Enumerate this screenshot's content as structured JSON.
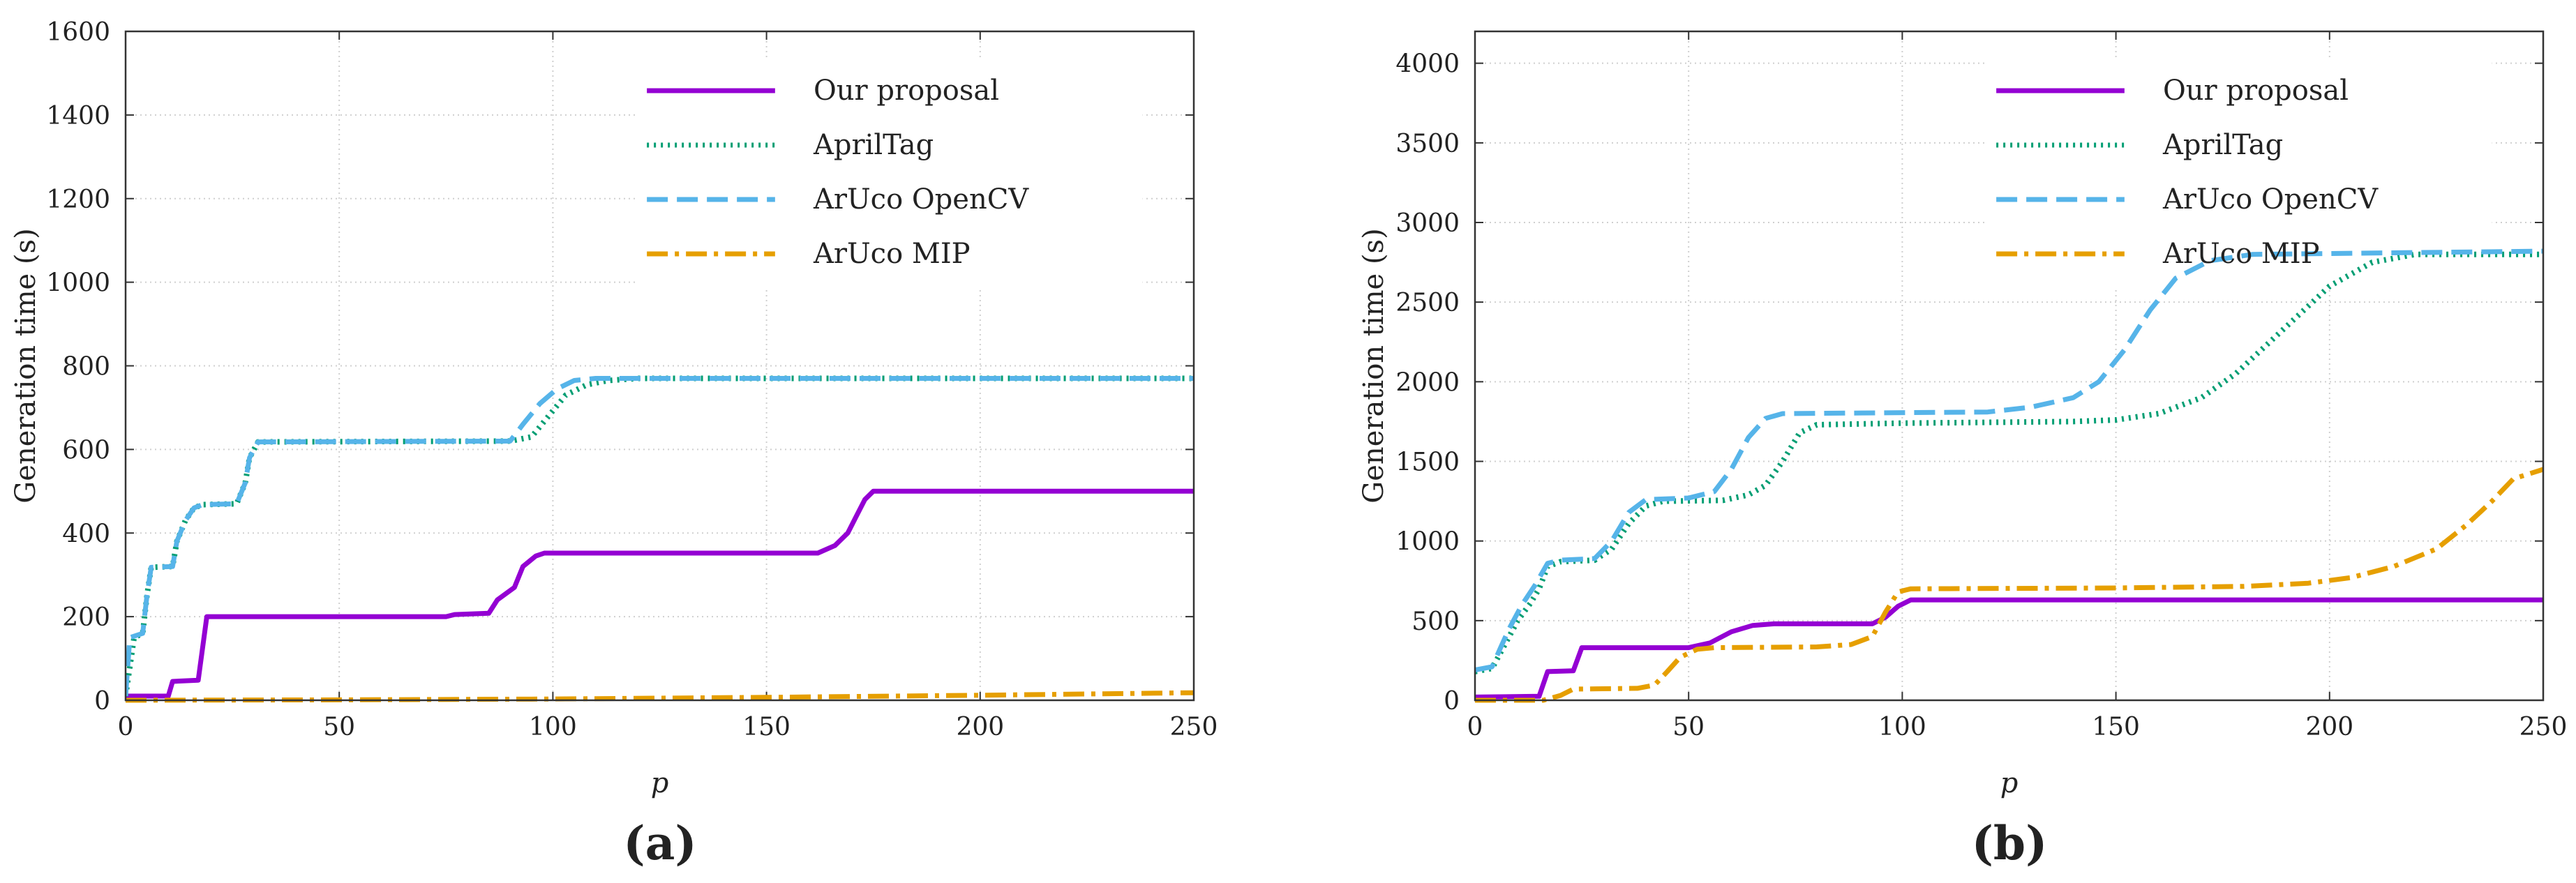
{
  "chart_data": [
    {
      "type": "line",
      "panel_label": "(a)",
      "xlabel": "p",
      "ylabel": "Generation time (s)",
      "xlim": [
        0,
        250
      ],
      "ylim": [
        0,
        1600
      ],
      "xticks": [
        0,
        50,
        100,
        150,
        200,
        250
      ],
      "yticks": [
        0,
        200,
        400,
        600,
        800,
        1000,
        1200,
        1400,
        1600
      ],
      "grid": true,
      "legend_position": "top-right",
      "series": [
        {
          "name": "Our proposal",
          "color": "#9400d3",
          "style": "solid",
          "points": [
            [
              0,
              10
            ],
            [
              10,
              10
            ],
            [
              11,
              45
            ],
            [
              17,
              48
            ],
            [
              19,
              200
            ],
            [
              75,
              200
            ],
            [
              77,
              205
            ],
            [
              85,
              208
            ],
            [
              87,
              240
            ],
            [
              91,
              270
            ],
            [
              93,
              320
            ],
            [
              96,
              345
            ],
            [
              98,
              352
            ],
            [
              162,
              352
            ],
            [
              166,
              370
            ],
            [
              169,
              400
            ],
            [
              171,
              440
            ],
            [
              173,
              480
            ],
            [
              175,
              500
            ],
            [
              250,
              500
            ]
          ]
        },
        {
          "name": "AprilTag",
          "color": "#009e73",
          "style": "dotted",
          "points": [
            [
              0,
              10
            ],
            [
              2,
              150
            ],
            [
              4,
              160
            ],
            [
              5,
              250
            ],
            [
              6,
              318
            ],
            [
              11,
              320
            ],
            [
              12,
              380
            ],
            [
              14,
              430
            ],
            [
              16,
              460
            ],
            [
              18,
              468
            ],
            [
              26,
              470
            ],
            [
              28,
              520
            ],
            [
              29,
              580
            ],
            [
              31,
              618
            ],
            [
              90,
              620
            ],
            [
              95,
              630
            ],
            [
              99,
              680
            ],
            [
              103,
              730
            ],
            [
              108,
              755
            ],
            [
              113,
              765
            ],
            [
              120,
              770
            ],
            [
              250,
              770
            ]
          ]
        },
        {
          "name": "ArUco OpenCV",
          "color": "#56b4e9",
          "style": "dashed",
          "points": [
            [
              0,
              10
            ],
            [
              1,
              150
            ],
            [
              4,
              160
            ],
            [
              5,
              250
            ],
            [
              6,
              318
            ],
            [
              11,
              320
            ],
            [
              12,
              380
            ],
            [
              14,
              430
            ],
            [
              16,
              460
            ],
            [
              18,
              468
            ],
            [
              26,
              470
            ],
            [
              28,
              520
            ],
            [
              29,
              580
            ],
            [
              31,
              618
            ],
            [
              90,
              620
            ],
            [
              93,
              660
            ],
            [
              97,
              710
            ],
            [
              101,
              745
            ],
            [
              105,
              765
            ],
            [
              110,
              770
            ],
            [
              250,
              770
            ]
          ]
        },
        {
          "name": "ArUco MIP",
          "color": "#e69f00",
          "style": "dashdot",
          "points": [
            [
              0,
              0
            ],
            [
              50,
              1
            ],
            [
              100,
              3
            ],
            [
              150,
              7
            ],
            [
              200,
              12
            ],
            [
              250,
              18
            ]
          ]
        }
      ]
    },
    {
      "type": "line",
      "panel_label": "(b)",
      "xlabel": "p",
      "ylabel": "Generation time (s)",
      "xlim": [
        0,
        250
      ],
      "ylim": [
        0,
        4200
      ],
      "xticks": [
        0,
        50,
        100,
        150,
        200,
        250
      ],
      "yticks": [
        0,
        500,
        1000,
        1500,
        2000,
        2500,
        3000,
        3500,
        4000
      ],
      "grid": true,
      "legend_position": "top-right",
      "series": [
        {
          "name": "Our proposal",
          "color": "#9400d3",
          "style": "solid",
          "points": [
            [
              0,
              20
            ],
            [
              15,
              25
            ],
            [
              17,
              180
            ],
            [
              23,
              185
            ],
            [
              25,
              330
            ],
            [
              50,
              330
            ],
            [
              55,
              360
            ],
            [
              60,
              430
            ],
            [
              65,
              470
            ],
            [
              70,
              480
            ],
            [
              93,
              480
            ],
            [
              96,
              520
            ],
            [
              99,
              590
            ],
            [
              102,
              630
            ],
            [
              250,
              630
            ]
          ]
        },
        {
          "name": "AprilTag",
          "color": "#009e73",
          "style": "dotted",
          "points": [
            [
              0,
              180
            ],
            [
              4,
              200
            ],
            [
              6,
              300
            ],
            [
              8,
              400
            ],
            [
              10,
              500
            ],
            [
              13,
              610
            ],
            [
              15,
              700
            ],
            [
              17,
              840
            ],
            [
              20,
              870
            ],
            [
              28,
              880
            ],
            [
              32,
              950
            ],
            [
              36,
              1110
            ],
            [
              40,
              1220
            ],
            [
              44,
              1250
            ],
            [
              58,
              1255
            ],
            [
              64,
              1290
            ],
            [
              68,
              1350
            ],
            [
              72,
              1500
            ],
            [
              76,
              1680
            ],
            [
              80,
              1730
            ],
            [
              100,
              1740
            ],
            [
              140,
              1750
            ],
            [
              150,
              1760
            ],
            [
              160,
              1800
            ],
            [
              170,
              1900
            ],
            [
              178,
              2050
            ],
            [
              186,
              2250
            ],
            [
              194,
              2450
            ],
            [
              200,
              2600
            ],
            [
              210,
              2750
            ],
            [
              220,
              2800
            ],
            [
              250,
              2800
            ]
          ]
        },
        {
          "name": "ArUco OpenCV",
          "color": "#56b4e9",
          "style": "dashed",
          "points": [
            [
              0,
              190
            ],
            [
              4,
              210
            ],
            [
              6,
              330
            ],
            [
              8,
              450
            ],
            [
              11,
              600
            ],
            [
              14,
              720
            ],
            [
              17,
              860
            ],
            [
              20,
              880
            ],
            [
              28,
              890
            ],
            [
              32,
              1000
            ],
            [
              36,
              1180
            ],
            [
              40,
              1260
            ],
            [
              50,
              1270
            ],
            [
              56,
              1310
            ],
            [
              60,
              1450
            ],
            [
              64,
              1650
            ],
            [
              68,
              1770
            ],
            [
              72,
              1800
            ],
            [
              120,
              1810
            ],
            [
              130,
              1840
            ],
            [
              140,
              1900
            ],
            [
              146,
              2000
            ],
            [
              152,
              2200
            ],
            [
              158,
              2450
            ],
            [
              164,
              2650
            ],
            [
              172,
              2760
            ],
            [
              182,
              2800
            ],
            [
              250,
              2820
            ]
          ]
        },
        {
          "name": "ArUco MIP",
          "color": "#e69f00",
          "style": "dashdot",
          "points": [
            [
              0,
              0
            ],
            [
              16,
              0
            ],
            [
              20,
              30
            ],
            [
              23,
              70
            ],
            [
              38,
              75
            ],
            [
              42,
              95
            ],
            [
              45,
              180
            ],
            [
              48,
              270
            ],
            [
              52,
              320
            ],
            [
              56,
              330
            ],
            [
              80,
              335
            ],
            [
              88,
              350
            ],
            [
              93,
              400
            ],
            [
              96,
              550
            ],
            [
              99,
              680
            ],
            [
              102,
              700
            ],
            [
              150,
              705
            ],
            [
              180,
              715
            ],
            [
              195,
              735
            ],
            [
              205,
              770
            ],
            [
              215,
              840
            ],
            [
              225,
              950
            ],
            [
              232,
              1100
            ],
            [
              238,
              1250
            ],
            [
              243,
              1390
            ],
            [
              250,
              1450
            ]
          ]
        }
      ]
    }
  ]
}
